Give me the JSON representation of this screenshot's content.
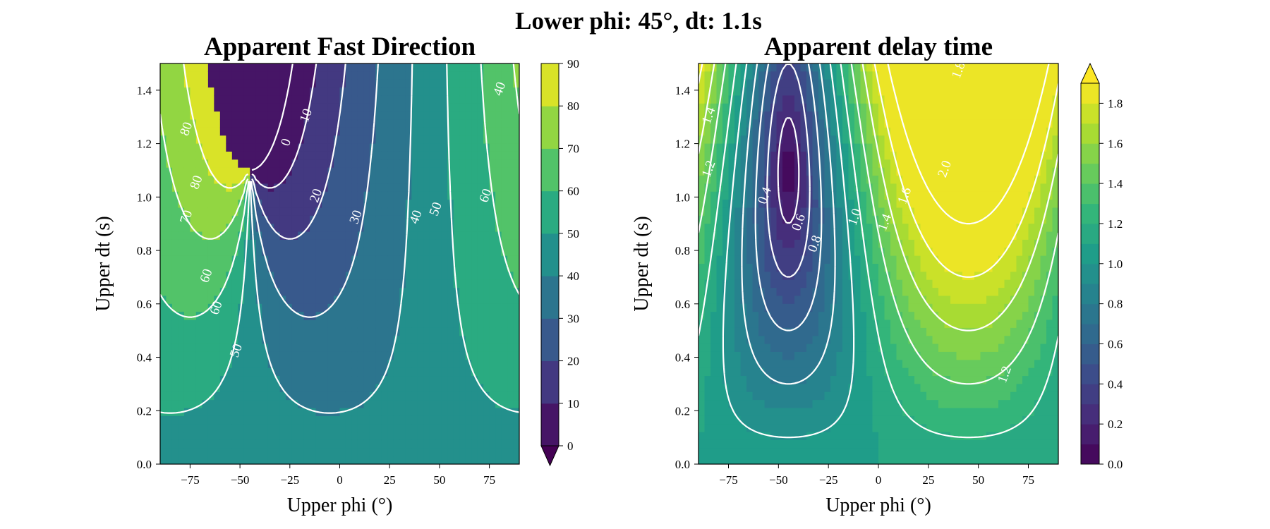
{
  "suptitle": "Lower phi: 45°, dt: 1.1s",
  "chart_data": [
    {
      "type": "heatmap",
      "subtype": "filled-contour",
      "title": "Apparent Fast Direction",
      "xlabel": "Upper phi (°)",
      "ylabel": "Upper dt (s)",
      "xlim": [
        -90,
        90
      ],
      "ylim": [
        0,
        1.5
      ],
      "x_ticks": [
        "−75",
        "−50",
        "−25",
        "0",
        "25",
        "50",
        "75"
      ],
      "x_tick_values": [
        -75,
        -50,
        -25,
        0,
        25,
        50,
        75
      ],
      "y_ticks": [
        "0.0",
        "0.2",
        "0.4",
        "0.6",
        "0.8",
        "1.0",
        "1.2",
        "1.4"
      ],
      "y_tick_values": [
        0,
        0.2,
        0.4,
        0.6,
        0.8,
        1.0,
        1.2,
        1.4
      ],
      "colorbar": {
        "levels": [
          0,
          10,
          20,
          30,
          40,
          50,
          60,
          70,
          80,
          90
        ],
        "tick_labels": [
          "0",
          "10",
          "20",
          "30",
          "40",
          "50",
          "60",
          "70",
          "80",
          "90"
        ],
        "extend": "min",
        "colormap": "viridis"
      },
      "contour_levels": [
        0,
        10,
        20,
        30,
        40,
        50,
        60,
        70,
        80,
        90
      ],
      "contour_labels": [
        "80",
        "0",
        "10",
        "20",
        "30",
        "40",
        "50",
        "60",
        "60",
        "50",
        "80",
        "70",
        "60",
        "40"
      ],
      "grid": false
    },
    {
      "type": "heatmap",
      "subtype": "filled-contour",
      "title": "Apparent delay time",
      "xlabel": "Upper phi (°)",
      "ylabel": "Upper dt (s)",
      "xlim": [
        -90,
        90
      ],
      "ylim": [
        0,
        1.5
      ],
      "x_ticks": [
        "−75",
        "−50",
        "−25",
        "0",
        "25",
        "50",
        "75"
      ],
      "x_tick_values": [
        -75,
        -50,
        -25,
        0,
        25,
        50,
        75
      ],
      "y_ticks": [
        "0.0",
        "0.2",
        "0.4",
        "0.6",
        "0.8",
        "1.0",
        "1.2",
        "1.4"
      ],
      "y_tick_values": [
        0,
        0.2,
        0.4,
        0.6,
        0.8,
        1.0,
        1.2,
        1.4
      ],
      "colorbar": {
        "levels": [
          0,
          0.1,
          0.2,
          0.3,
          0.4,
          0.5,
          0.6,
          0.7,
          0.8,
          0.9,
          1.0,
          1.1,
          1.2,
          1.3,
          1.4,
          1.5,
          1.6,
          1.7,
          1.8,
          1.9
        ],
        "tick_labels": [
          "0.0",
          "0.2",
          "0.4",
          "0.6",
          "0.8",
          "1.0",
          "1.2",
          "1.4",
          "1.6",
          "1.8"
        ],
        "extend": "max",
        "colormap": "viridis"
      },
      "contour_levels": [
        0.2,
        0.4,
        0.6,
        0.8,
        1.0,
        1.2,
        1.4,
        1.6,
        1.8,
        2.0
      ],
      "contour_labels": [
        "1.4",
        "1.2",
        "0.4",
        "0.6",
        "0.8",
        "1.0",
        "1.4",
        "1.6",
        "1.8",
        "2.0",
        "1.2"
      ],
      "grid": false
    }
  ]
}
